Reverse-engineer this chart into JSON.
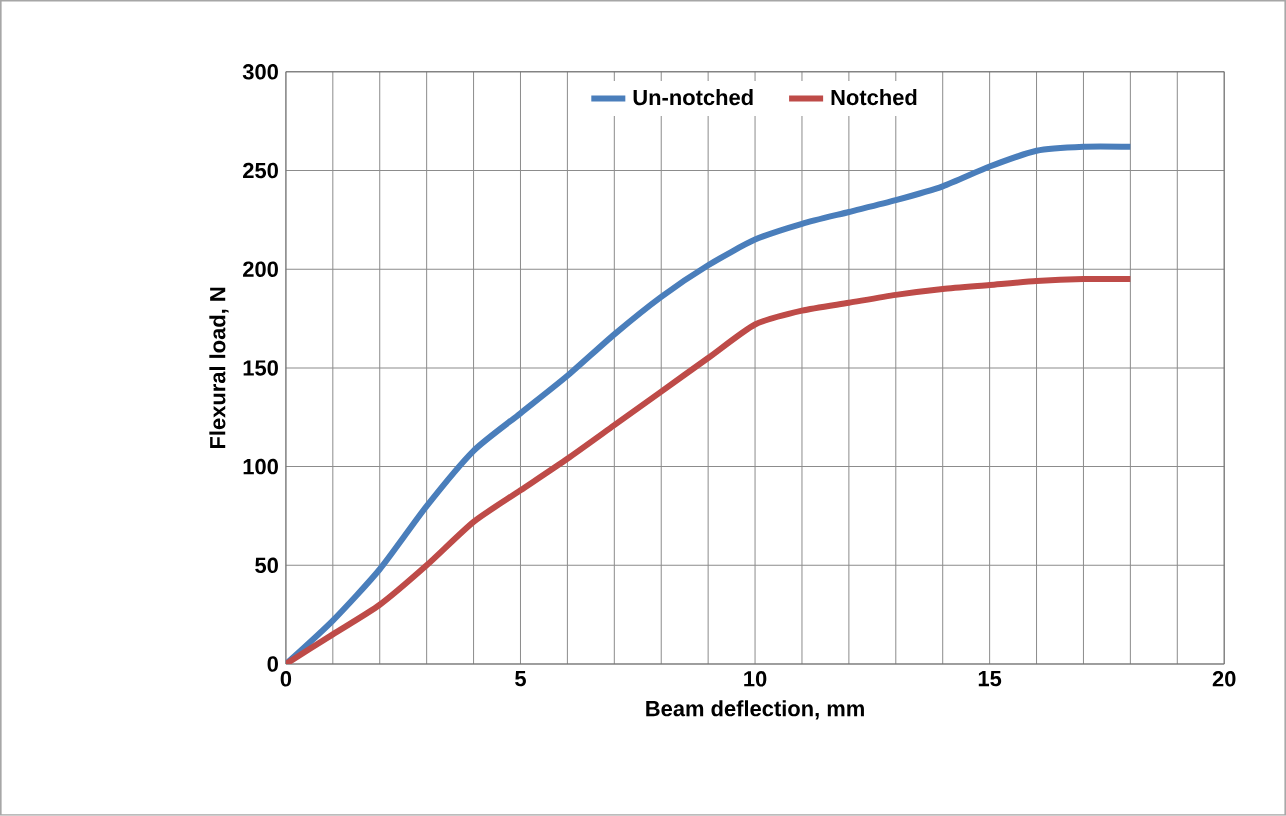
{
  "chart_data": {
    "type": "line",
    "xlabel": "Beam deflection, mm",
    "ylabel": "Flexural load, N",
    "x": [
      0,
      1,
      2,
      3,
      4,
      5,
      6,
      7,
      8,
      9,
      10,
      11,
      12,
      13,
      14,
      15,
      16,
      17,
      18
    ],
    "series": [
      {
        "name": "Un-notched",
        "color": "#4a7ebb",
        "values": [
          0,
          22,
          48,
          80,
          108,
          127,
          146,
          167,
          186,
          202,
          215,
          223,
          229,
          235,
          242,
          252,
          260,
          262,
          262
        ]
      },
      {
        "name": "Notched",
        "color": "#be4b48",
        "values": [
          0,
          15,
          30,
          50,
          72,
          88,
          104,
          121,
          138,
          155,
          172,
          179,
          183,
          187,
          190,
          192,
          194,
          195,
          195
        ]
      }
    ],
    "xlim": [
      0,
      20
    ],
    "ylim": [
      0,
      300
    ],
    "xticks": [
      0,
      5,
      10,
      15,
      20
    ],
    "yticks": [
      0,
      50,
      100,
      150,
      200,
      250,
      300
    ],
    "grid": true,
    "legend": "top",
    "marker": "none",
    "line_style": "solid"
  }
}
